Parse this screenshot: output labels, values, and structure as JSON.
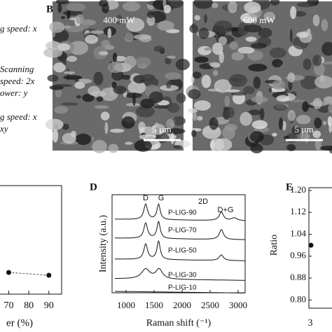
{
  "panel_a": {
    "lines": [
      "g speed: x",
      "Scanning",
      "speed: 2x",
      "ower: y",
      "g speed: x",
      "xy"
    ]
  },
  "panel_b": {
    "label": "B",
    "images": [
      {
        "caption": "400 mW",
        "scale": "5 µm"
      },
      {
        "caption": "600 mW",
        "scale": "5 µm"
      }
    ]
  },
  "chart_data": [
    {
      "type": "scatter",
      "x_label": "er (%)",
      "x": [
        70,
        90
      ],
      "xlim": [
        66,
        96
      ],
      "xticks": [
        70,
        80,
        90
      ],
      "color": "#111"
    },
    {
      "type": "line",
      "label": "D",
      "y_label": "Intensity (a.u.)",
      "x_label": "Raman shift (⁻¹)",
      "xlim": [
        750,
        3125
      ],
      "xticks": [
        1000,
        1500,
        2000,
        2500,
        3000
      ],
      "peak_labels": [
        "D",
        "G",
        "2D",
        "D+G"
      ],
      "series": [
        {
          "name": "P-LIG-90"
        },
        {
          "name": "P-LIG-70"
        },
        {
          "name": "P-LIG-50"
        },
        {
          "name": "P-LIG-30"
        },
        {
          "name": "P-LIG-10"
        }
      ]
    },
    {
      "type": "scatter",
      "label": "E",
      "y_label": "Ratio",
      "categories": [
        "3"
      ],
      "values": [
        1.0
      ],
      "ylim": [
        0.77,
        1.21
      ],
      "yticks": [
        {
          "value": 0.8,
          "label": "0.80"
        },
        {
          "value": 0.88,
          "label": "0.88"
        },
        {
          "value": 0.96,
          "label": "0.96"
        },
        {
          "value": 1.04,
          "label": "1.04"
        },
        {
          "value": 1.12,
          "label": "1.12"
        },
        {
          "value": 1.2,
          "label": "1.20"
        }
      ],
      "color": "#111"
    }
  ]
}
